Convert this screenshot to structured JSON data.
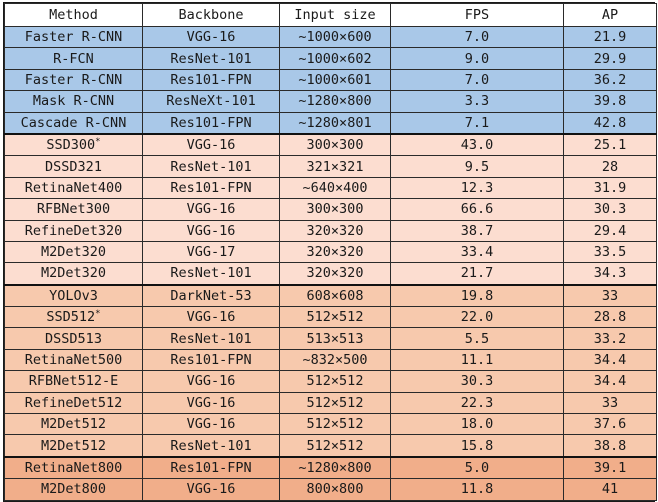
{
  "header": {
    "method": "Method",
    "backbone": "Backbone",
    "input_size": "Input size",
    "fps": "FPS",
    "ap": "AP"
  },
  "colors": {
    "blue": "#a9c8e8",
    "pale": "#fcddd0",
    "mid": "#f7c9ad",
    "dark": "#f1ae8a"
  },
  "rows": [
    {
      "method": "Faster R-CNN",
      "sup": "",
      "backbone": "VGG-16",
      "input": "~1000×600",
      "fps": "7.0",
      "ap": "21.9",
      "group": "blue",
      "sep": false
    },
    {
      "method": "R-FCN",
      "sup": "",
      "backbone": "ResNet-101",
      "input": "~1000×602",
      "fps": "9.0",
      "ap": "29.9",
      "group": "blue",
      "sep": false
    },
    {
      "method": "Faster R-CNN",
      "sup": "",
      "backbone": "Res101-FPN",
      "input": "~1000×601",
      "fps": "7.0",
      "ap": "36.2",
      "group": "blue",
      "sep": false
    },
    {
      "method": "Mask R-CNN",
      "sup": "",
      "backbone": "ResNeXt-101",
      "input": "~1280×800",
      "fps": "3.3",
      "ap": "39.8",
      "group": "blue",
      "sep": false
    },
    {
      "method": "Cascade R-CNN",
      "sup": "",
      "backbone": "Res101-FPN",
      "input": "~1280×801",
      "fps": "7.1",
      "ap": "42.8",
      "group": "blue",
      "sep": false
    },
    {
      "method": "SSD300",
      "sup": "*",
      "backbone": "VGG-16",
      "input": "300×300",
      "fps": "43.0",
      "ap": "25.1",
      "group": "pale",
      "sep": true
    },
    {
      "method": "DSSD321",
      "sup": "",
      "backbone": "ResNet-101",
      "input": "321×321",
      "fps": "9.5",
      "ap": "28",
      "group": "pale",
      "sep": false
    },
    {
      "method": "RetinaNet400",
      "sup": "",
      "backbone": "Res101-FPN",
      "input": "~640×400",
      "fps": "12.3",
      "ap": "31.9",
      "group": "pale",
      "sep": false
    },
    {
      "method": "RFBNet300",
      "sup": "",
      "backbone": "VGG-16",
      "input": "300×300",
      "fps": "66.6",
      "ap": "30.3",
      "group": "pale",
      "sep": false
    },
    {
      "method": "RefineDet320",
      "sup": "",
      "backbone": "VGG-16",
      "input": "320×320",
      "fps": "38.7",
      "ap": "29.4",
      "group": "pale",
      "sep": false
    },
    {
      "method": "M2Det320",
      "sup": "",
      "backbone": "VGG-17",
      "input": "320×320",
      "fps": "33.4",
      "ap": "33.5",
      "group": "pale",
      "sep": false
    },
    {
      "method": "M2Det320",
      "sup": "",
      "backbone": "ResNet-101",
      "input": "320×320",
      "fps": "21.7",
      "ap": "34.3",
      "group": "pale",
      "sep": false
    },
    {
      "method": "YOLOv3",
      "sup": "",
      "backbone": "DarkNet-53",
      "input": "608×608",
      "fps": "19.8",
      "ap": "33",
      "group": "mid",
      "sep": true
    },
    {
      "method": "SSD512",
      "sup": "*",
      "backbone": "VGG-16",
      "input": "512×512",
      "fps": "22.0",
      "ap": "28.8",
      "group": "mid",
      "sep": false
    },
    {
      "method": "DSSD513",
      "sup": "",
      "backbone": "ResNet-101",
      "input": "513×513",
      "fps": "5.5",
      "ap": "33.2",
      "group": "mid",
      "sep": false
    },
    {
      "method": "RetinaNet500",
      "sup": "",
      "backbone": "Res101-FPN",
      "input": "~832×500",
      "fps": "11.1",
      "ap": "34.4",
      "group": "mid",
      "sep": false
    },
    {
      "method": "RFBNet512-E",
      "sup": "",
      "backbone": "VGG-16",
      "input": "512×512",
      "fps": "30.3",
      "ap": "34.4",
      "group": "mid",
      "sep": false
    },
    {
      "method": "RefineDet512",
      "sup": "",
      "backbone": "VGG-16",
      "input": "512×512",
      "fps": "22.3",
      "ap": "33",
      "group": "mid",
      "sep": false
    },
    {
      "method": "M2Det512",
      "sup": "",
      "backbone": "VGG-16",
      "input": "512×512",
      "fps": "18.0",
      "ap": "37.6",
      "group": "mid",
      "sep": false
    },
    {
      "method": "M2Det512",
      "sup": "",
      "backbone": "ResNet-101",
      "input": "512×512",
      "fps": "15.8",
      "ap": "38.8",
      "group": "mid",
      "sep": false
    },
    {
      "method": "RetinaNet800",
      "sup": "",
      "backbone": "Res101-FPN",
      "input": "~1280×800",
      "fps": "5.0",
      "ap": "39.1",
      "group": "dark",
      "sep": true
    },
    {
      "method": "M2Det800",
      "sup": "",
      "backbone": "VGG-16",
      "input": "800×800",
      "fps": "11.8",
      "ap": "41",
      "group": "dark",
      "sep": false
    }
  ]
}
